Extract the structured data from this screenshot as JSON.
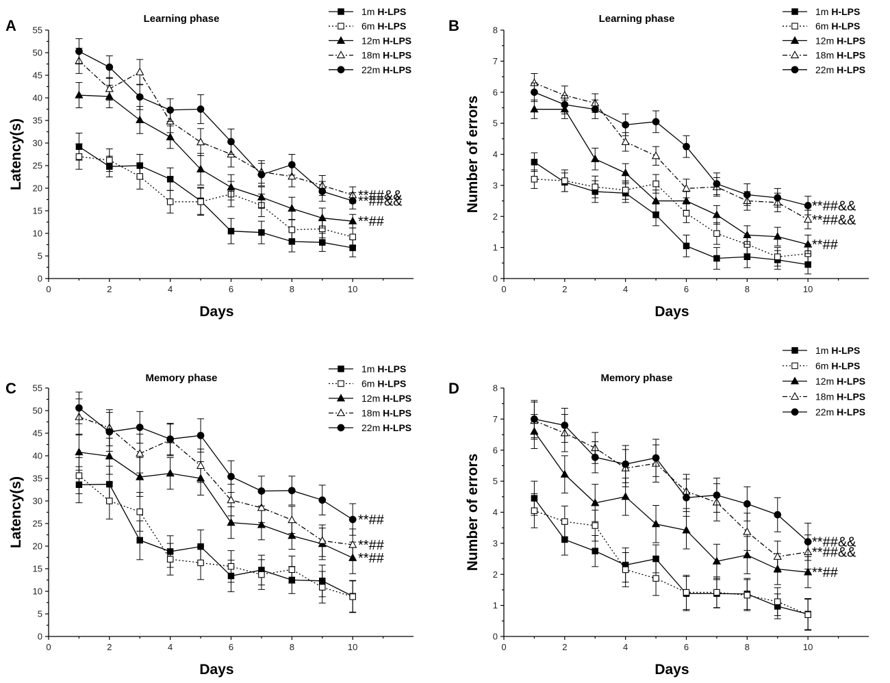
{
  "figure": {
    "series_styles": [
      {
        "key": "1m",
        "marker": "square",
        "filled": true,
        "dash": ""
      },
      {
        "key": "6m",
        "marker": "square",
        "filled": false,
        "dash": "2,3"
      },
      {
        "key": "12m",
        "marker": "triangle",
        "filled": true,
        "dash": ""
      },
      {
        "key": "18m",
        "marker": "triangle",
        "filled": false,
        "dash": "7,3,2,3"
      },
      {
        "key": "22m",
        "marker": "circle",
        "filled": true,
        "dash": ""
      }
    ],
    "line_color": "#000000",
    "open_marker_fill": "#ffffff"
  },
  "chart_data": [
    {
      "panel": "A",
      "type": "line",
      "title": "Learning phase",
      "xlabel": "Days",
      "ylabel": "Latency(s)",
      "xlim": [
        0,
        12
      ],
      "ylim": [
        0,
        55
      ],
      "xticks": [
        0,
        2,
        4,
        6,
        8,
        10
      ],
      "yticks": [
        0,
        5,
        10,
        15,
        20,
        25,
        30,
        35,
        40,
        45,
        50,
        55
      ],
      "x": [
        1,
        2,
        3,
        4,
        5,
        6,
        7,
        8,
        9,
        10
      ],
      "series": [
        {
          "name": "1m",
          "suffix": "H-LPS",
          "values": [
            29.2,
            24.8,
            25.0,
            22.0,
            17.2,
            10.5,
            10.2,
            8.2,
            8.0,
            6.8
          ],
          "errors": [
            3.0,
            2.3,
            2.5,
            2.5,
            3.0,
            2.8,
            2.5,
            2.3,
            2.0,
            2.0
          ],
          "sig": ""
        },
        {
          "name": "6m",
          "suffix": "H-LPS",
          "values": [
            27.0,
            26.2,
            22.6,
            17.0,
            17.0,
            18.7,
            16.2,
            10.8,
            11.0,
            9.2
          ],
          "errors": [
            2.8,
            2.5,
            2.8,
            2.5,
            3.0,
            2.8,
            2.5,
            2.3,
            2.0,
            2.0
          ],
          "sig": ""
        },
        {
          "name": "12m",
          "suffix": "H-LPS",
          "values": [
            40.6,
            40.3,
            35.1,
            31.3,
            24.2,
            20.2,
            18.0,
            15.5,
            13.4,
            12.7
          ],
          "errors": [
            2.8,
            2.5,
            3.0,
            2.5,
            3.5,
            2.8,
            2.3,
            2.5,
            2.2,
            1.5
          ],
          "sig": "**##"
        },
        {
          "name": "18m",
          "suffix": "H-LPS",
          "values": [
            48.2,
            42.0,
            45.7,
            34.8,
            30.2,
            27.5,
            23.6,
            22.6,
            20.6,
            18.5
          ],
          "errors": [
            2.8,
            2.5,
            2.8,
            2.5,
            3.0,
            2.8,
            2.5,
            2.3,
            2.2,
            1.8
          ],
          "sig": "**##&&"
        },
        {
          "name": "22m",
          "suffix": "H-LPS",
          "values": [
            50.3,
            46.8,
            40.2,
            37.3,
            37.5,
            30.3,
            23.0,
            25.2,
            19.3,
            17.2
          ],
          "errors": [
            2.8,
            2.5,
            2.8,
            2.5,
            3.2,
            2.8,
            2.5,
            2.3,
            2.2,
            1.8
          ],
          "sig": "**##&&"
        }
      ]
    },
    {
      "panel": "B",
      "type": "line",
      "title": "Learning phase",
      "xlabel": "Days",
      "ylabel": "Number of errors",
      "xlim": [
        0,
        12
      ],
      "ylim": [
        0,
        8
      ],
      "xticks": [
        0,
        2,
        4,
        6,
        8,
        10
      ],
      "yticks": [
        0,
        1,
        2,
        3,
        4,
        5,
        6,
        7,
        8
      ],
      "x": [
        1,
        2,
        3,
        4,
        5,
        6,
        7,
        8,
        9,
        10
      ],
      "series": [
        {
          "name": "1m",
          "suffix": "H-LPS",
          "values": [
            3.75,
            3.1,
            2.8,
            2.75,
            2.05,
            1.05,
            0.65,
            0.7,
            0.6,
            0.45
          ],
          "errors": [
            0.3,
            0.3,
            0.35,
            0.3,
            0.35,
            0.35,
            0.35,
            0.35,
            0.3,
            0.3
          ],
          "sig": ""
        },
        {
          "name": "6m",
          "suffix": "H-LPS",
          "values": [
            3.2,
            3.15,
            2.95,
            2.85,
            3.05,
            2.1,
            1.45,
            1.1,
            0.7,
            0.8
          ],
          "errors": [
            0.3,
            0.35,
            0.35,
            0.3,
            0.3,
            0.3,
            0.35,
            0.3,
            0.3,
            0.3
          ],
          "sig": ""
        },
        {
          "name": "12m",
          "suffix": "H-LPS",
          "values": [
            5.45,
            5.45,
            3.85,
            3.4,
            2.5,
            2.5,
            2.05,
            1.4,
            1.35,
            1.1
          ],
          "errors": [
            0.3,
            0.3,
            0.35,
            0.3,
            0.35,
            0.3,
            0.3,
            0.3,
            0.3,
            0.3
          ],
          "sig": "**##"
        },
        {
          "name": "18m",
          "suffix": "H-LPS",
          "values": [
            6.3,
            5.9,
            5.65,
            4.4,
            3.95,
            2.9,
            2.95,
            2.5,
            2.45,
            1.9
          ],
          "errors": [
            0.3,
            0.3,
            0.3,
            0.3,
            0.3,
            0.3,
            0.3,
            0.3,
            0.3,
            0.3
          ],
          "sig": "**##&&"
        },
        {
          "name": "22m",
          "suffix": "H-LPS",
          "values": [
            6.0,
            5.6,
            5.45,
            4.95,
            5.05,
            4.25,
            3.05,
            2.7,
            2.6,
            2.35
          ],
          "errors": [
            0.3,
            0.3,
            0.3,
            0.35,
            0.35,
            0.35,
            0.35,
            0.35,
            0.3,
            0.3
          ],
          "sig": "**##&&"
        }
      ]
    },
    {
      "panel": "C",
      "type": "line",
      "title": "Memory phase",
      "xlabel": "Days",
      "ylabel": "Latency(s)",
      "xlim": [
        0,
        12
      ],
      "ylim": [
        0,
        55
      ],
      "xticks": [
        0,
        2,
        4,
        6,
        8,
        10
      ],
      "yticks": [
        0,
        5,
        10,
        15,
        20,
        25,
        30,
        35,
        40,
        45,
        50,
        55
      ],
      "x": [
        1,
        2,
        3,
        4,
        5,
        6,
        7,
        8,
        9,
        10
      ],
      "series": [
        {
          "name": "1m",
          "suffix": "H-LPS",
          "values": [
            33.6,
            33.7,
            21.3,
            18.8,
            19.9,
            13.4,
            14.7,
            12.5,
            12.3,
            8.9
          ],
          "errors": [
            4.0,
            4.0,
            4.3,
            3.5,
            3.7,
            3.5,
            3.3,
            3.0,
            3.5,
            3.5
          ],
          "sig": ""
        },
        {
          "name": "6m",
          "suffix": "H-LPS",
          "values": [
            35.6,
            30.0,
            27.6,
            17.1,
            16.3,
            15.5,
            13.7,
            14.8,
            10.9,
            8.8
          ],
          "errors": [
            4.0,
            4.0,
            4.3,
            3.5,
            3.7,
            3.5,
            3.3,
            3.0,
            3.5,
            3.5
          ],
          "sig": ""
        },
        {
          "name": "12m",
          "suffix": "H-LPS",
          "values": [
            40.8,
            39.9,
            35.3,
            36.1,
            35.0,
            25.2,
            24.7,
            22.3,
            20.5,
            17.4
          ],
          "errors": [
            4.0,
            4.0,
            4.3,
            3.5,
            3.7,
            3.5,
            3.3,
            3.0,
            3.5,
            3.5
          ],
          "sig": "**##"
        },
        {
          "name": "18m",
          "suffix": "H-LPS",
          "values": [
            48.6,
            46.2,
            40.5,
            43.5,
            37.8,
            30.2,
            28.5,
            25.8,
            21.2,
            20.3
          ],
          "errors": [
            4.0,
            4.0,
            4.3,
            3.5,
            3.7,
            3.5,
            3.3,
            3.0,
            3.5,
            3.5
          ],
          "sig": "**##"
        },
        {
          "name": "22m",
          "suffix": "H-LPS",
          "values": [
            50.6,
            45.3,
            46.3,
            43.7,
            44.5,
            35.4,
            32.2,
            32.3,
            30.2,
            25.9
          ],
          "errors": [
            3.5,
            4.3,
            3.5,
            3.5,
            3.7,
            3.5,
            3.3,
            3.2,
            3.3,
            3.5
          ],
          "sig": "**##"
        }
      ]
    },
    {
      "panel": "D",
      "type": "line",
      "title": "Memory phase",
      "xlabel": "Days",
      "ylabel": "Number of errors",
      "xlim": [
        0,
        12
      ],
      "ylim": [
        0,
        8
      ],
      "xticks": [
        0,
        2,
        4,
        6,
        8,
        10
      ],
      "yticks": [
        0,
        1,
        2,
        3,
        4,
        5,
        6,
        7,
        8
      ],
      "x": [
        1,
        2,
        3,
        4,
        5,
        6,
        7,
        8,
        9,
        10
      ],
      "series": [
        {
          "name": "1m",
          "suffix": "H-LPS",
          "values": [
            4.45,
            3.12,
            2.75,
            2.3,
            2.5,
            1.38,
            1.38,
            1.37,
            0.97,
            0.72
          ],
          "errors": [
            0.55,
            0.5,
            0.5,
            0.55,
            0.45,
            0.55,
            0.45,
            0.5,
            0.4,
            0.5
          ],
          "sig": ""
        },
        {
          "name": "6m",
          "suffix": "H-LPS",
          "values": [
            4.05,
            3.7,
            3.57,
            2.15,
            1.87,
            1.42,
            1.42,
            1.33,
            1.12,
            0.7
          ],
          "errors": [
            0.55,
            0.5,
            0.5,
            0.55,
            0.55,
            0.55,
            0.5,
            0.5,
            0.45,
            0.5
          ],
          "sig": ""
        },
        {
          "name": "12m",
          "suffix": "H-LPS",
          "values": [
            6.6,
            5.22,
            4.3,
            4.5,
            3.62,
            3.42,
            2.42,
            2.62,
            2.17,
            2.07
          ],
          "errors": [
            0.55,
            0.6,
            0.6,
            0.6,
            0.6,
            0.6,
            0.55,
            0.6,
            0.5,
            0.5
          ],
          "sig": "**##"
        },
        {
          "name": "18m",
          "suffix": "H-LPS",
          "values": [
            6.95,
            6.55,
            6.07,
            5.42,
            5.57,
            4.67,
            4.32,
            3.37,
            2.57,
            2.72
          ],
          "errors": [
            0.6,
            0.6,
            0.5,
            0.6,
            0.6,
            0.55,
            0.6,
            0.6,
            0.5,
            0.55
          ],
          "sig": "**##&&"
        },
        {
          "name": "22m",
          "suffix": "H-LPS",
          "values": [
            7.0,
            6.8,
            5.77,
            5.55,
            5.75,
            4.47,
            4.55,
            4.27,
            3.92,
            3.05
          ],
          "errors": [
            0.6,
            0.55,
            0.5,
            0.6,
            0.6,
            0.6,
            0.55,
            0.55,
            0.55,
            0.6
          ],
          "sig": "**##&&"
        }
      ]
    }
  ]
}
